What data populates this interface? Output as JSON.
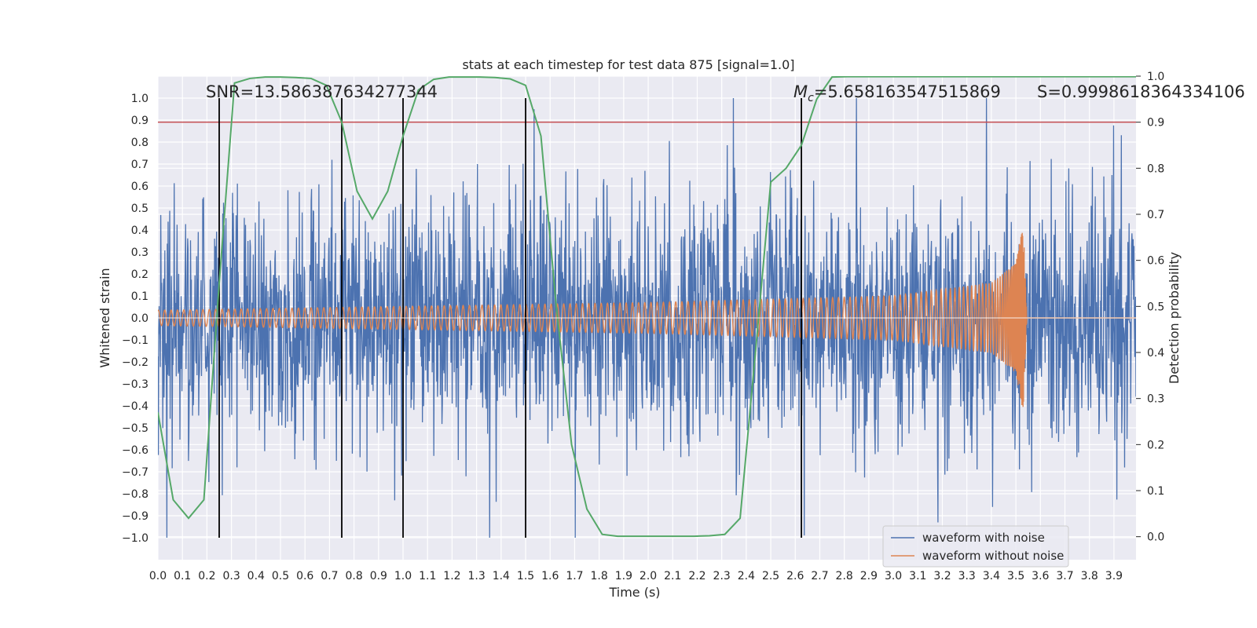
{
  "chart_data": {
    "type": "line",
    "title": "stats at each timestep for test data 875 [signal=1.0]",
    "xlabel": "Time (s)",
    "ylabel": "Whitened strain",
    "y2label": "Detection probability",
    "xlim": [
      0.0,
      3.99
    ],
    "ylim": [
      -1.1,
      1.1
    ],
    "y2lim": [
      -0.05,
      1.0
    ],
    "x_ticks": [
      "0.0",
      "0.1",
      "0.2",
      "0.3",
      "0.4",
      "0.5",
      "0.6",
      "0.7",
      "0.8",
      "0.9",
      "1.0",
      "1.1",
      "1.2",
      "1.3",
      "1.4",
      "1.5",
      "1.6",
      "1.7",
      "1.8",
      "1.9",
      "2.0",
      "2.1",
      "2.2",
      "2.3",
      "2.4",
      "2.5",
      "2.6",
      "2.7",
      "2.8",
      "2.9",
      "3.0",
      "3.1",
      "3.2",
      "3.3",
      "3.4",
      "3.5",
      "3.6",
      "3.7",
      "3.8",
      "3.9"
    ],
    "y_ticks": [
      "1.0",
      "0.9",
      "0.8",
      "0.7",
      "0.6",
      "0.5",
      "0.4",
      "0.3",
      "0.2",
      "0.1",
      "0.0",
      "−0.1",
      "−0.2",
      "−0.3",
      "−0.4",
      "−0.5",
      "−0.6",
      "−0.7",
      "−0.8",
      "−0.9",
      "−1.0"
    ],
    "y2_ticks": [
      "1.0",
      "0.9",
      "0.8",
      "0.7",
      "0.6",
      "0.5",
      "0.4",
      "0.3",
      "0.2",
      "0.1",
      "0.0"
    ],
    "grid": true,
    "legend_position": "bottom-right",
    "annotations": {
      "snr": "SNR=13.586387634277344",
      "mc": "=5.658163547515869",
      "mc_symbol": "M",
      "mc_sub": "c",
      "s": "S=0.9998618364334106"
    },
    "threshold": {
      "y2": 0.9,
      "color": "#c44e52"
    },
    "vertical_lines_x": [
      0.25,
      0.75,
      1.0,
      1.5,
      2.625
    ],
    "series": [
      {
        "name": "waveform with noise",
        "color": "#4c72b0",
        "noise_std": 0.27,
        "max_abs": 1.0
      },
      {
        "name": "waveform without noise",
        "color": "#dd8452",
        "amplitude_profile": [
          [
            0.0,
            0.035
          ],
          [
            2.0,
            0.07
          ],
          [
            3.0,
            0.1
          ],
          [
            3.4,
            0.16
          ],
          [
            3.5,
            0.25
          ],
          [
            3.53,
            0.43
          ],
          [
            3.545,
            0.0
          ],
          [
            3.99,
            0.0
          ]
        ]
      },
      {
        "name": "detection probability",
        "color": "#55a868",
        "axis": "y2",
        "x": [
          0.0,
          0.0625,
          0.125,
          0.1875,
          0.25,
          0.3125,
          0.375,
          0.4375,
          0.5,
          0.5625,
          0.625,
          0.6875,
          0.75,
          0.8125,
          0.875,
          0.9375,
          1.0,
          1.0625,
          1.125,
          1.1875,
          1.25,
          1.3125,
          1.375,
          1.4375,
          1.5,
          1.5625,
          1.625,
          1.6875,
          1.75,
          1.8125,
          1.875,
          1.9375,
          2.0,
          2.0625,
          2.125,
          2.1875,
          2.25,
          2.3125,
          2.375,
          2.4375,
          2.5,
          2.5625,
          2.625,
          2.6875,
          2.75,
          2.8125,
          2.875,
          2.9375,
          3.0,
          3.0625,
          3.125,
          3.1875,
          3.25,
          3.3125,
          3.375,
          3.4375,
          3.5,
          3.5625,
          3.625,
          3.6875,
          3.75,
          3.8125,
          3.875,
          3.9375,
          3.99
        ],
        "y": [
          0.27,
          0.08,
          0.04,
          0.08,
          0.55,
          0.985,
          0.995,
          0.998,
          0.998,
          0.997,
          0.995,
          0.98,
          0.9,
          0.75,
          0.69,
          0.75,
          0.87,
          0.97,
          0.993,
          0.998,
          0.998,
          0.998,
          0.997,
          0.994,
          0.98,
          0.87,
          0.5,
          0.2,
          0.06,
          0.005,
          0.001,
          0.001,
          0.001,
          0.001,
          0.001,
          0.001,
          0.002,
          0.005,
          0.04,
          0.4,
          0.77,
          0.8,
          0.85,
          0.95,
          0.998,
          0.999,
          0.999,
          0.999,
          0.999,
          0.999,
          0.999,
          0.999,
          0.999,
          0.999,
          0.999,
          0.999,
          0.999,
          0.999,
          0.999,
          0.999,
          0.999,
          0.999,
          0.999,
          0.999,
          0.999
        ]
      }
    ]
  }
}
